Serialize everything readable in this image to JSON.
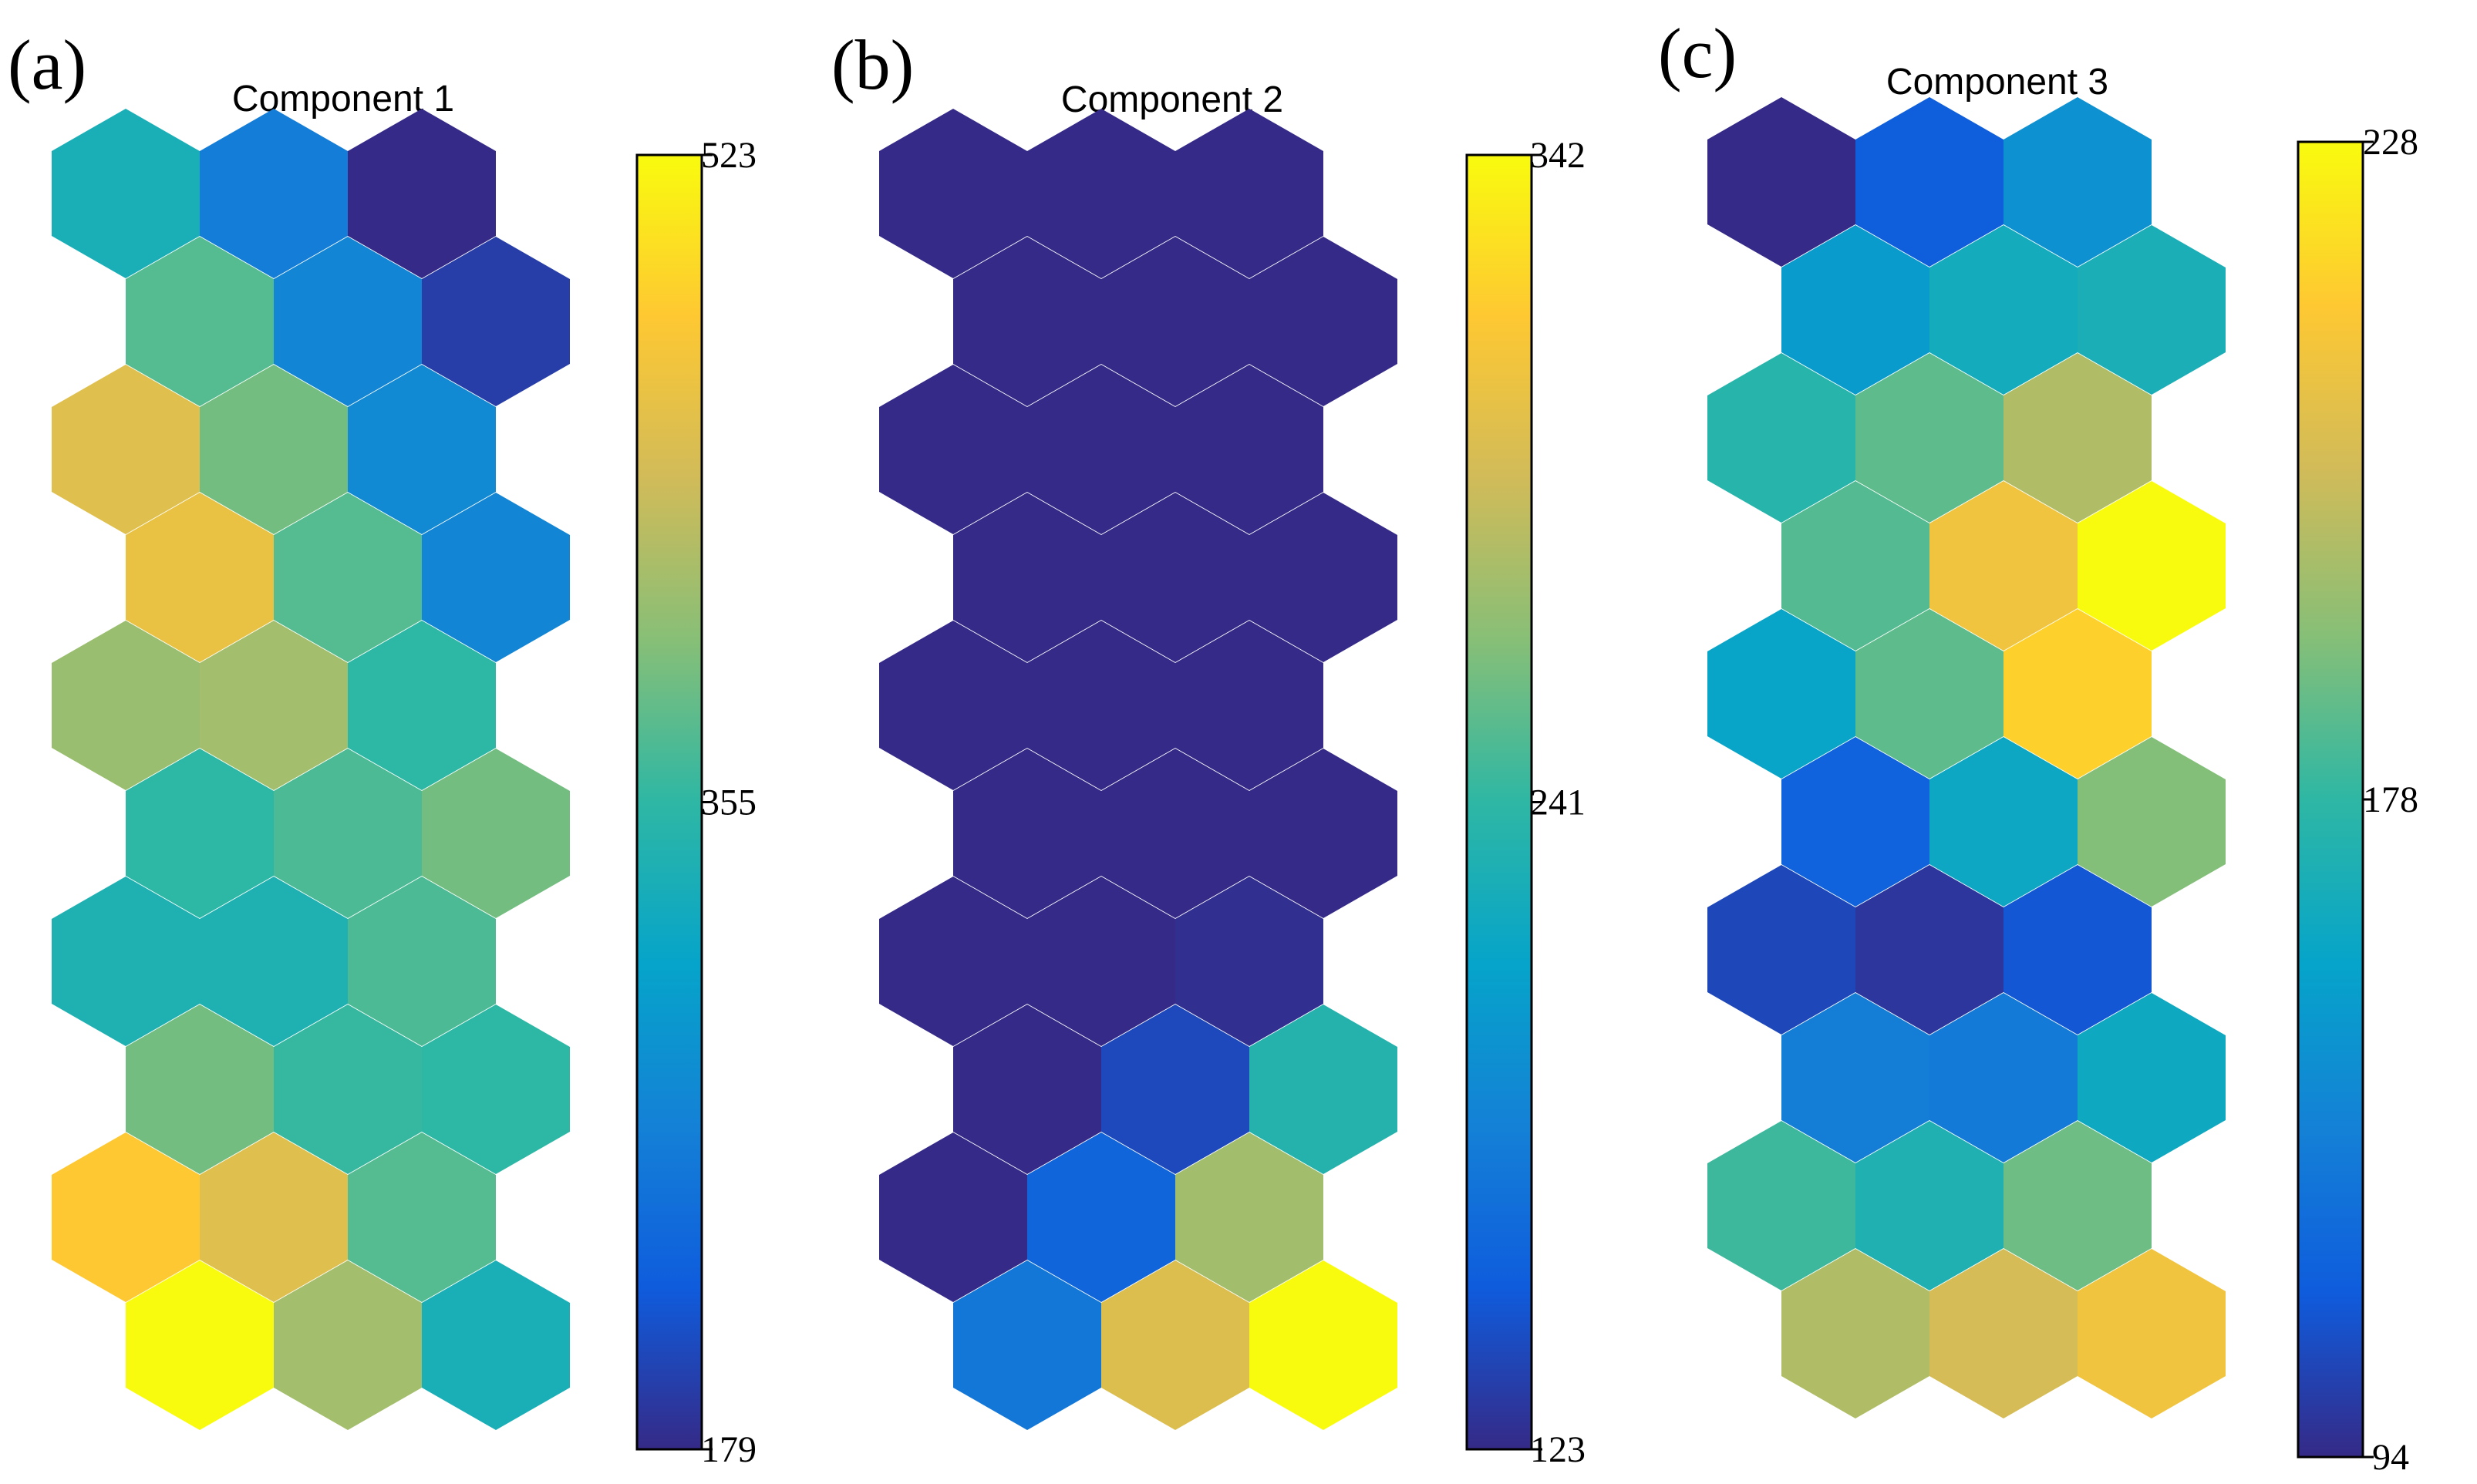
{
  "chart_data": [
    {
      "type": "heatmap",
      "panel_label": "(a)",
      "title": "Component 1",
      "grid": "hexagonal, 3 columns x 10 rows",
      "colormap": "parula",
      "colorbar": {
        "min": 179,
        "max": 523,
        "ticks": [
          179,
          355,
          523
        ]
      },
      "cells": [
        [
          330,
          260,
          179
        ],
        [
          370,
          270,
          195
        ],
        [
          450,
          385,
          275
        ],
        [
          460,
          370,
          270
        ],
        [
          405,
          410,
          350
        ],
        [
          350,
          365,
          385
        ],
        [
          335,
          335,
          365
        ],
        [
          385,
          355,
          350
        ],
        [
          480,
          450,
          370
        ],
        [
          523,
          410,
          330
        ]
      ]
    },
    {
      "type": "heatmap",
      "panel_label": "(b)",
      "title": "Component 2",
      "grid": "hexagonal, 3 columns x 10 rows",
      "colormap": "parula",
      "colorbar": {
        "min": 123,
        "max": 342,
        "ticks": [
          123,
          241,
          342
        ]
      },
      "cells": [
        [
          123,
          123,
          123
        ],
        [
          123,
          123,
          123
        ],
        [
          123,
          123,
          123
        ],
        [
          123,
          123,
          123
        ],
        [
          123,
          123,
          123
        ],
        [
          123,
          123,
          123
        ],
        [
          123,
          123,
          126
        ],
        [
          123,
          140,
          226
        ],
        [
          123,
          157,
          270
        ],
        [
          170,
          294,
          342
        ]
      ]
    },
    {
      "type": "heatmap",
      "panel_label": "(c)",
      "title": "Component 3",
      "grid": "hexagonal, 3 columns x 10 rows",
      "colormap": "parula",
      "colorbar": {
        "min": 94,
        "max": 228,
        "ticks": [
          94,
          178,
          228
        ]
      },
      "cells": [
        [
          94,
          112,
          135
        ],
        [
          140,
          150,
          153
        ],
        [
          158,
          170,
          187
        ],
        [
          168,
          206,
          228
        ],
        [
          145,
          170,
          214
        ],
        [
          114,
          147,
          177
        ],
        [
          104,
          98,
          109
        ],
        [
          126,
          125,
          148
        ],
        [
          164,
          155,
          173
        ],
        [
          187,
          196,
          206
        ]
      ]
    }
  ],
  "colors": {
    "parula_stops": [
      "#352a87",
      "#0f5cdd",
      "#1481d6",
      "#06a4ca",
      "#2eb7a4",
      "#87bf77",
      "#d1bb59",
      "#fec832",
      "#f9fb0e"
    ]
  }
}
